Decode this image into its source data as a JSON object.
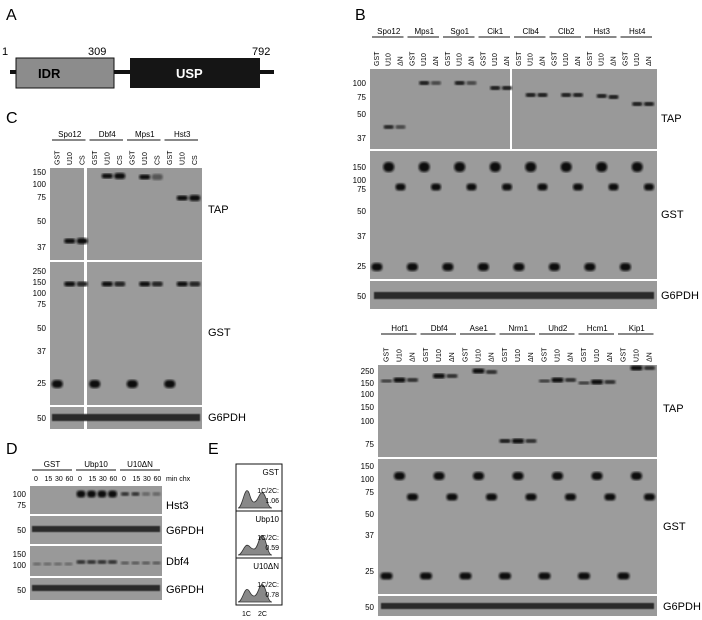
{
  "panels": {
    "A": {
      "label": "A",
      "scale": {
        "start": "1",
        "mid": "309",
        "end": "792"
      },
      "domains": [
        "IDR",
        "USP"
      ]
    },
    "B": {
      "label": "B",
      "top": {
        "proteins": [
          "Spo12",
          "Mps1",
          "Sgo1",
          "Cik1",
          "Clb4",
          "Clb2",
          "Hst3",
          "Hst4"
        ],
        "lanes": [
          "GST",
          "U10",
          "ΔN"
        ],
        "tap_markers": [
          "100",
          "75",
          "50",
          "37"
        ],
        "gst_markers": [
          "150",
          "100",
          "75",
          "50",
          "37",
          "25"
        ],
        "g6pdh_markers": [
          "50"
        ],
        "blots": [
          "TAP",
          "GST",
          "G6PDH"
        ]
      },
      "bottom": {
        "proteins": [
          "Hof1",
          "Dbf4",
          "Ase1",
          "Nrm1",
          "Uhd2",
          "Hcm1",
          "Kip1"
        ],
        "lanes": [
          "GST",
          "U10",
          "ΔN"
        ],
        "tap_markers": [
          "250",
          "150",
          "100",
          "150",
          "100",
          "75"
        ],
        "gst_markers": [
          "150",
          "100",
          "75",
          "50",
          "37",
          "25"
        ],
        "g6pdh_markers": [
          "50"
        ],
        "blots": [
          "TAP",
          "GST",
          "G6PDH"
        ]
      }
    },
    "C": {
      "label": "C",
      "proteins": [
        "Spo12",
        "Dbf4",
        "Mps1",
        "Hst3"
      ],
      "lanes": [
        "GST",
        "U10",
        "CS"
      ],
      "tap_markers": [
        "150",
        "100",
        "75",
        "50",
        "37"
      ],
      "gst_markers": [
        "250",
        "150",
        "100",
        "75",
        "50",
        "37",
        "25"
      ],
      "g6pdh_markers": [
        "50"
      ],
      "blots": [
        "TAP",
        "GST",
        "G6PDH"
      ]
    },
    "D": {
      "label": "D",
      "groups": [
        "GST",
        "Ubp10",
        "U10ΔN"
      ],
      "timepoints": [
        "0",
        "15",
        "30",
        "60"
      ],
      "unit": "min chx",
      "rows": [
        {
          "markers": [
            "100",
            "75"
          ],
          "name": "Hst3"
        },
        {
          "markers": [
            "50"
          ],
          "name": "G6PDH"
        },
        {
          "markers": [
            "150",
            "100"
          ],
          "name": "Dbf4"
        },
        {
          "markers": [
            "50"
          ],
          "name": "G6PDH"
        }
      ]
    },
    "E": {
      "label": "E",
      "histograms": [
        {
          "name": "GST",
          "ratio_label": "1C/2C:",
          "ratio": "1.06"
        },
        {
          "name": "Ubp10",
          "ratio_label": "1C/2C:",
          "ratio": "0.59"
        },
        {
          "name": "U10ΔN",
          "ratio_label": "1C/2C:",
          "ratio": "0.78"
        }
      ],
      "x_ticks": [
        "1C",
        "2C"
      ]
    }
  }
}
